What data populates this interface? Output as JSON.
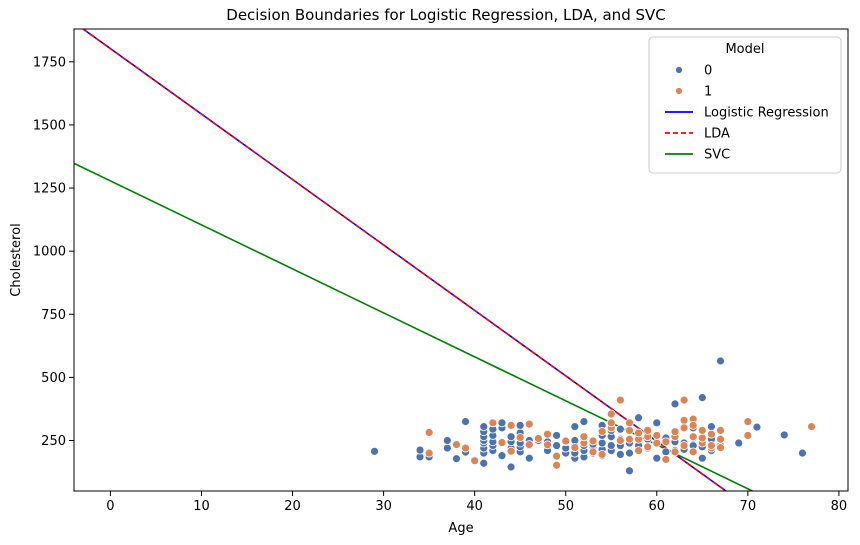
{
  "chart_data": {
    "type": "scatter",
    "title": "Decision Boundaries for Logistic Regression, LDA, and SVC",
    "xlabel": "Age",
    "ylabel": "Cholesterol",
    "xlim": [
      -4,
      81
    ],
    "ylim": [
      50,
      1880
    ],
    "xticks": [
      0,
      10,
      20,
      30,
      40,
      50,
      60,
      70,
      80
    ],
    "yticks": [
      250,
      500,
      750,
      1000,
      1250,
      1500,
      1750
    ],
    "grid": false,
    "legend": {
      "title": "Model",
      "placement": "top-right",
      "entries": [
        {
          "label": "0",
          "kind": "marker",
          "color": "#4c72b0"
        },
        {
          "label": "1",
          "kind": "marker",
          "color": "#dd8452"
        },
        {
          "label": "Logistic Regression",
          "kind": "line",
          "color": "#0000ff",
          "dash": "solid"
        },
        {
          "label": "LDA",
          "kind": "line",
          "color": "#ff0000",
          "dash": "dashed"
        },
        {
          "label": "SVC",
          "kind": "line",
          "color": "#008000",
          "dash": "solid"
        }
      ]
    },
    "lines": [
      {
        "name": "Logistic Regression",
        "color": "#0000ff",
        "dash": "solid",
        "x": [
          -3,
          67.6
        ],
        "y": [
          1880,
          50
        ]
      },
      {
        "name": "LDA",
        "color": "#ff0000",
        "dash": "dashed",
        "x": [
          -3,
          67.6
        ],
        "y": [
          1880,
          50
        ]
      },
      {
        "name": "SVC",
        "color": "#008000",
        "dash": "solid",
        "x": [
          -4,
          70.5
        ],
        "y": [
          1348,
          50
        ]
      }
    ],
    "series": [
      {
        "name": "0",
        "color": "#4c72b0",
        "points": [
          [
            29,
            207
          ],
          [
            34,
            185
          ],
          [
            34,
            212
          ],
          [
            35,
            198
          ],
          [
            35,
            185
          ],
          [
            37,
            220
          ],
          [
            37,
            250
          ],
          [
            38,
            178
          ],
          [
            39,
            325
          ],
          [
            39,
            204
          ],
          [
            40,
            170
          ],
          [
            41,
            160
          ],
          [
            41,
            200
          ],
          [
            41,
            220
          ],
          [
            41,
            240
          ],
          [
            41,
            250
          ],
          [
            41,
            265
          ],
          [
            41,
            285
          ],
          [
            41,
            305
          ],
          [
            42,
            210
          ],
          [
            42,
            230
          ],
          [
            42,
            245
          ],
          [
            42,
            270
          ],
          [
            42,
            295
          ],
          [
            43,
            190
          ],
          [
            43,
            240
          ],
          [
            43,
            300
          ],
          [
            43,
            320
          ],
          [
            44,
            145
          ],
          [
            44,
            220
          ],
          [
            44,
            245
          ],
          [
            44,
            265
          ],
          [
            45,
            205
          ],
          [
            45,
            225
          ],
          [
            45,
            240
          ],
          [
            45,
            280
          ],
          [
            45,
            310
          ],
          [
            46,
            180
          ],
          [
            46,
            230
          ],
          [
            46,
            250
          ],
          [
            47,
            250
          ],
          [
            47,
            260
          ],
          [
            48,
            210
          ],
          [
            48,
            245
          ],
          [
            49,
            230
          ],
          [
            49,
            270
          ],
          [
            50,
            200
          ],
          [
            50,
            220
          ],
          [
            50,
            245
          ],
          [
            51,
            180
          ],
          [
            51,
            200
          ],
          [
            51,
            230
          ],
          [
            51,
            250
          ],
          [
            51,
            305
          ],
          [
            52,
            185
          ],
          [
            52,
            210
          ],
          [
            52,
            230
          ],
          [
            52,
            255
          ],
          [
            52,
            325
          ],
          [
            53,
            200
          ],
          [
            53,
            225
          ],
          [
            53,
            235
          ],
          [
            54,
            190
          ],
          [
            54,
            215
          ],
          [
            54,
            240
          ],
          [
            54,
            270
          ],
          [
            54,
            310
          ],
          [
            55,
            210
          ],
          [
            55,
            230
          ],
          [
            55,
            265
          ],
          [
            55,
            290
          ],
          [
            56,
            195
          ],
          [
            56,
            230
          ],
          [
            56,
            255
          ],
          [
            56,
            295
          ],
          [
            57,
            130
          ],
          [
            57,
            200
          ],
          [
            57,
            240
          ],
          [
            58,
            230
          ],
          [
            58,
            265
          ],
          [
            58,
            340
          ],
          [
            59,
            220
          ],
          [
            59,
            255
          ],
          [
            59,
            280
          ],
          [
            60,
            180
          ],
          [
            60,
            240
          ],
          [
            60,
            320
          ],
          [
            61,
            205
          ],
          [
            61,
            260
          ],
          [
            62,
            210
          ],
          [
            62,
            245
          ],
          [
            62,
            395
          ],
          [
            63,
            215
          ],
          [
            63,
            240
          ],
          [
            64,
            230
          ],
          [
            64,
            260
          ],
          [
            64,
            300
          ],
          [
            65,
            180
          ],
          [
            65,
            225
          ],
          [
            65,
            420
          ],
          [
            66,
            210
          ],
          [
            66,
            255
          ],
          [
            66,
            305
          ],
          [
            67,
            230
          ],
          [
            67,
            565
          ],
          [
            69,
            240
          ],
          [
            71,
            303
          ],
          [
            74,
            272
          ],
          [
            76,
            200
          ]
        ]
      },
      {
        "name": "1",
        "color": "#dd8452",
        "points": [
          [
            35,
            282
          ],
          [
            35,
            200
          ],
          [
            38,
            234
          ],
          [
            39,
            220
          ],
          [
            40,
            170
          ],
          [
            42,
            320
          ],
          [
            43,
            242
          ],
          [
            44,
            208
          ],
          [
            44,
            310
          ],
          [
            45,
            262
          ],
          [
            46,
            234
          ],
          [
            46,
            315
          ],
          [
            47,
            258
          ],
          [
            48,
            233
          ],
          [
            48,
            275
          ],
          [
            49,
            152
          ],
          [
            49,
            188
          ],
          [
            50,
            248
          ],
          [
            51,
            222
          ],
          [
            52,
            240
          ],
          [
            52,
            265
          ],
          [
            53,
            205
          ],
          [
            53,
            248
          ],
          [
            54,
            195
          ],
          [
            54,
            286
          ],
          [
            55,
            300
          ],
          [
            55,
            320
          ],
          [
            55,
            355
          ],
          [
            56,
            250
          ],
          [
            56,
            410
          ],
          [
            57,
            255
          ],
          [
            57,
            290
          ],
          [
            57,
            320
          ],
          [
            58,
            210
          ],
          [
            58,
            255
          ],
          [
            58,
            280
          ],
          [
            59,
            225
          ],
          [
            59,
            265
          ],
          [
            59,
            290
          ],
          [
            60,
            240
          ],
          [
            60,
            270
          ],
          [
            61,
            175
          ],
          [
            61,
            245
          ],
          [
            62,
            205
          ],
          [
            62,
            265
          ],
          [
            62,
            285
          ],
          [
            63,
            330
          ],
          [
            63,
            410
          ],
          [
            63,
            230
          ],
          [
            63,
            300
          ],
          [
            64,
            205
          ],
          [
            64,
            265
          ],
          [
            64,
            335
          ],
          [
            64,
            310
          ],
          [
            65,
            240
          ],
          [
            65,
            260
          ],
          [
            65,
            290
          ],
          [
            66,
            220
          ],
          [
            66,
            230
          ],
          [
            66,
            275
          ],
          [
            67,
            255
          ],
          [
            67,
            290
          ],
          [
            67,
            222
          ],
          [
            70,
            270
          ],
          [
            70,
            325
          ],
          [
            77,
            305
          ]
        ]
      }
    ]
  }
}
